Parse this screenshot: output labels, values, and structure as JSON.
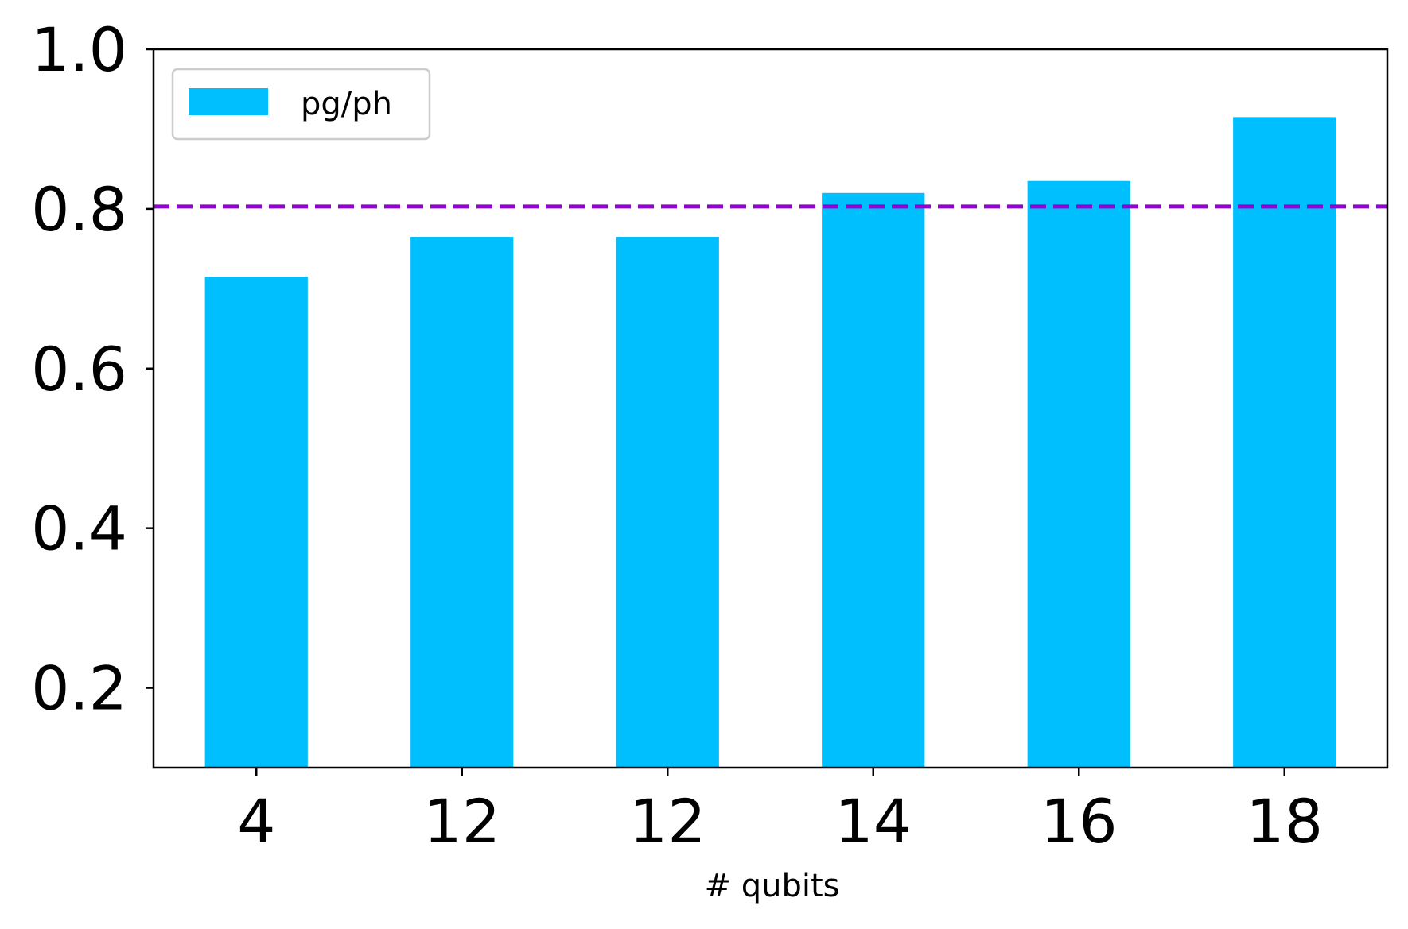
{
  "chart_data": {
    "type": "bar",
    "title": "",
    "xlabel": "# qubits",
    "ylabel": "",
    "categories": [
      "4",
      "12",
      "12",
      "14",
      "16",
      "18"
    ],
    "series": [
      {
        "name": "pg/ph",
        "values": [
          0.715,
          0.765,
          0.765,
          0.82,
          0.835,
          0.915
        ],
        "color": "#00bfff"
      }
    ],
    "reference_line": {
      "y": 0.803,
      "style": "dashed",
      "color": "#9400d3"
    },
    "ylim": [
      0.1,
      1.0
    ],
    "yticks": [
      "0.2",
      "0.4",
      "0.6",
      "0.8",
      "1.0"
    ],
    "legend": {
      "placement": "top-left"
    },
    "grid": false
  }
}
